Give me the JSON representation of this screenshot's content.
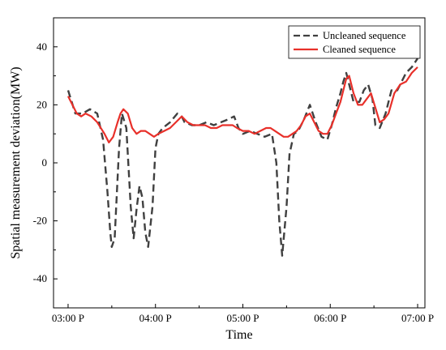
{
  "chart_data": {
    "type": "line",
    "xlabel": "Time",
    "ylabel": "Spatial measurement deviation(MW)",
    "x_unit": "minutes",
    "xlim": [
      -10,
      245
    ],
    "ylim": [
      -50,
      50
    ],
    "x_ticks": [
      0,
      60,
      120,
      180,
      240
    ],
    "x_tick_labels": [
      "03:00 P",
      "04:00 P",
      "05:00 P",
      "06:00 P",
      "07:00 P"
    ],
    "y_ticks": [
      -40,
      -20,
      0,
      20,
      40
    ],
    "y_tick_labels": [
      "-40",
      "-20",
      "0",
      "20",
      "40"
    ],
    "grid": false,
    "legend_position": "top-right",
    "series": [
      {
        "name": "Uncleaned sequence",
        "color": "#404040",
        "style": "dashed",
        "points": [
          [
            0,
            25
          ],
          [
            5,
            17
          ],
          [
            10,
            17
          ],
          [
            15,
            18.5
          ],
          [
            20,
            17
          ],
          [
            24,
            8
          ],
          [
            27,
            -10
          ],
          [
            29,
            -24
          ],
          [
            30,
            -29
          ],
          [
            32,
            -26
          ],
          [
            35,
            5
          ],
          [
            37,
            17
          ],
          [
            40,
            12
          ],
          [
            43,
            -15
          ],
          [
            45,
            -26
          ],
          [
            47,
            -16
          ],
          [
            49,
            -8
          ],
          [
            51,
            -12
          ],
          [
            53,
            -24
          ],
          [
            55,
            -29
          ],
          [
            58,
            -15
          ],
          [
            60,
            5
          ],
          [
            62,
            10
          ],
          [
            65,
            12
          ],
          [
            70,
            14
          ],
          [
            75,
            17
          ],
          [
            78,
            16
          ],
          [
            80,
            14
          ],
          [
            85,
            13
          ],
          [
            90,
            13
          ],
          [
            95,
            14
          ],
          [
            100,
            13
          ],
          [
            105,
            14
          ],
          [
            110,
            15
          ],
          [
            114,
            16
          ],
          [
            117,
            12
          ],
          [
            120,
            10
          ],
          [
            125,
            11
          ],
          [
            130,
            10
          ],
          [
            135,
            9
          ],
          [
            140,
            10
          ],
          [
            143,
            0
          ],
          [
            145,
            -20
          ],
          [
            147,
            -32
          ],
          [
            150,
            -15
          ],
          [
            152,
            3
          ],
          [
            155,
            10
          ],
          [
            158,
            11
          ],
          [
            162,
            15
          ],
          [
            166,
            20
          ],
          [
            170,
            14
          ],
          [
            174,
            9
          ],
          [
            178,
            8
          ],
          [
            181,
            13
          ],
          [
            184,
            19
          ],
          [
            187,
            24
          ],
          [
            189,
            28
          ],
          [
            191,
            31
          ],
          [
            193,
            27
          ],
          [
            196,
            21
          ],
          [
            200,
            21
          ],
          [
            203,
            25
          ],
          [
            206,
            27
          ],
          [
            209,
            22
          ],
          [
            211,
            13
          ],
          [
            214,
            12
          ],
          [
            218,
            17
          ],
          [
            222,
            25
          ],
          [
            226,
            25
          ],
          [
            229,
            28
          ],
          [
            232,
            31
          ],
          [
            236,
            33
          ],
          [
            240,
            36
          ]
        ]
      },
      {
        "name": "Cleaned sequence",
        "color": "#e8302a",
        "style": "solid",
        "points": [
          [
            0,
            23
          ],
          [
            3,
            20
          ],
          [
            6,
            17
          ],
          [
            9,
            16
          ],
          [
            12,
            17
          ],
          [
            16,
            16
          ],
          [
            20,
            14
          ],
          [
            25,
            10
          ],
          [
            28,
            7
          ],
          [
            31,
            9
          ],
          [
            34,
            14
          ],
          [
            36,
            17
          ],
          [
            38,
            18.5
          ],
          [
            41,
            17
          ],
          [
            44,
            12
          ],
          [
            47,
            10
          ],
          [
            50,
            11
          ],
          [
            53,
            11
          ],
          [
            56,
            10
          ],
          [
            59,
            9
          ],
          [
            62,
            10
          ],
          [
            66,
            11
          ],
          [
            70,
            12
          ],
          [
            74,
            14
          ],
          [
            78,
            16
          ],
          [
            82,
            14
          ],
          [
            86,
            13
          ],
          [
            90,
            13
          ],
          [
            94,
            13
          ],
          [
            98,
            12
          ],
          [
            102,
            12
          ],
          [
            106,
            13
          ],
          [
            110,
            13
          ],
          [
            113,
            13
          ],
          [
            116,
            12
          ],
          [
            120,
            11
          ],
          [
            124,
            11
          ],
          [
            128,
            10
          ],
          [
            132,
            11
          ],
          [
            136,
            12
          ],
          [
            139,
            12
          ],
          [
            142,
            11
          ],
          [
            145,
            10
          ],
          [
            148,
            9
          ],
          [
            151,
            9
          ],
          [
            154,
            10
          ],
          [
            157,
            11
          ],
          [
            160,
            13
          ],
          [
            163,
            16
          ],
          [
            166,
            17
          ],
          [
            169,
            14
          ],
          [
            172,
            11
          ],
          [
            175,
            10
          ],
          [
            178,
            10
          ],
          [
            181,
            13
          ],
          [
            184,
            17
          ],
          [
            187,
            21
          ],
          [
            189,
            25
          ],
          [
            191,
            29
          ],
          [
            193,
            30
          ],
          [
            196,
            24
          ],
          [
            199,
            20
          ],
          [
            202,
            20
          ],
          [
            205,
            22
          ],
          [
            208,
            24
          ],
          [
            211,
            19
          ],
          [
            214,
            14
          ],
          [
            217,
            15
          ],
          [
            220,
            17
          ],
          [
            224,
            24
          ],
          [
            228,
            27
          ],
          [
            232,
            28
          ],
          [
            236,
            31
          ],
          [
            240,
            33
          ]
        ]
      }
    ]
  }
}
